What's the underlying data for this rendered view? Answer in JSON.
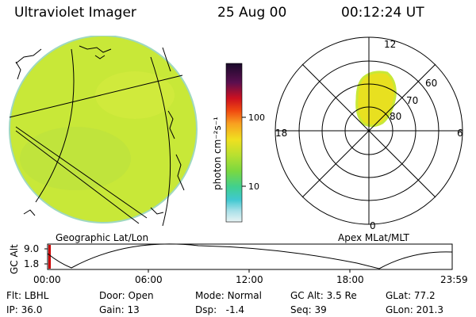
{
  "header": {
    "title": "Ultraviolet Imager",
    "date": "25 Aug 00",
    "time": "00:12:24 UT"
  },
  "geo_panel": {
    "label": "Geographic Lat/Lon"
  },
  "polar_panel": {
    "label": "Apex MLat/MLT",
    "mlt_labels": {
      "top": "12",
      "left": "18",
      "right": "6",
      "bottom": "0"
    },
    "lat_labels": [
      "60",
      "70",
      "80"
    ]
  },
  "colorbar": {
    "unit_label": "photon cm⁻²s⁻¹",
    "ticks": [
      "100",
      "10"
    ],
    "colors": [
      "#1a0a2a",
      "#5a0f4f",
      "#cc1020",
      "#f04a10",
      "#f8a020",
      "#f0e020",
      "#b8e030",
      "#7ad840",
      "#40d090",
      "#40c8d0",
      "#a8e0e8",
      "#e8f4f4"
    ]
  },
  "alt_plot": {
    "ylabel": "GC Alt",
    "yticks": [
      "9.0",
      "1.8"
    ],
    "xticks": [
      "00:00",
      "06:00",
      "12:00",
      "18:00",
      "23:59"
    ]
  },
  "info": {
    "row1": [
      {
        "label": "Flt:",
        "value": "LBHL"
      },
      {
        "label": "Door:",
        "value": "Open"
      },
      {
        "label": "Mode:",
        "value": "Normal"
      },
      {
        "label": "GC Alt:",
        "value": "3.5 Re"
      },
      {
        "label": "GLat:",
        "value": "77.2"
      }
    ],
    "row2": [
      {
        "label": "IP:",
        "value": "36.0"
      },
      {
        "label": "Gain:",
        "value": "13"
      },
      {
        "label": "Dsp:",
        "value": "-1.4"
      },
      {
        "label": "Seq:",
        "value": "39"
      },
      {
        "label": "GLon:",
        "value": "201.3"
      }
    ]
  },
  "colors": {
    "disk_fill": "#c8e838",
    "oval_fill": "#e8e020",
    "accent_red": "#cc0000"
  }
}
